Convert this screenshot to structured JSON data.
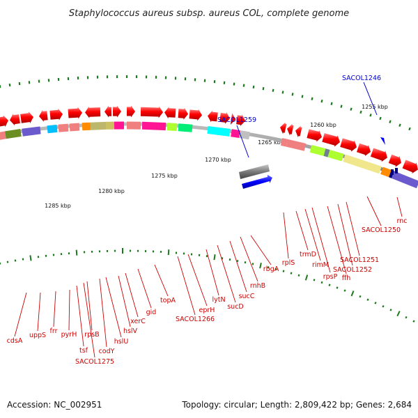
{
  "title": "Staphylococcus aureus subsp. aureus COL, complete genome",
  "footer": {
    "accession": "Accession: NC_002951",
    "summary": "Topology: circular; Length: 2,809,422 bp; Genes: 2,684"
  },
  "ruler_ticks": [
    "1255 kbp",
    "1260 kbp",
    "1265 kbp",
    "1270 kbp",
    "1275 kbp",
    "1280 kbp",
    "1285 kbp"
  ],
  "highlighted_genes": [
    "SACOL1259",
    "SACOL1246"
  ],
  "gene_labels": [
    "cdsA",
    "uppS",
    "frr",
    "pyrH",
    "tsf",
    "SACOL1275",
    "rpsB",
    "codY",
    "hslU",
    "hslV",
    "xerC",
    "gid",
    "topA",
    "SACOL1266",
    "eprH",
    "lytN",
    "sucD",
    "sucC",
    "rnhB",
    "rbgA",
    "rplS",
    "trmD",
    "rimM",
    "rpsP",
    "ffh",
    "SACOL1252",
    "SACOL1251",
    "SACOL1250",
    "rnc"
  ],
  "colors": {
    "gene_arrow": "#ff0000",
    "label": "#cc0000",
    "highlight": "#0000cc",
    "backbone": "#808080",
    "ruler_dot": "#1b7a1b"
  }
}
